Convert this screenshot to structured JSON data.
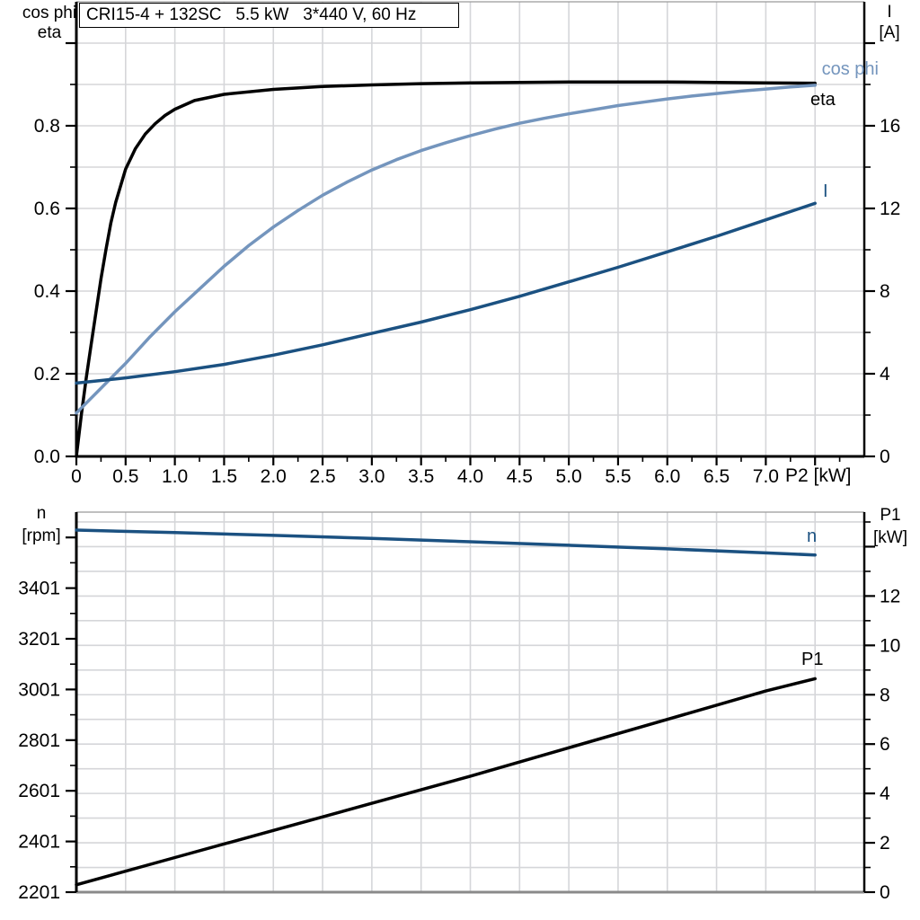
{
  "colors": {
    "eta": "#000000",
    "cos_phi": "#7495bd",
    "current": "#1b5181",
    "speed": "#1b5181",
    "p1": "#000000",
    "grid": "#d5d6d9",
    "axis_black": "#000000",
    "frame_gray": "#9a9a9a",
    "bottom_axis_gray": "#8a8a8a"
  },
  "chart_data": [
    {
      "type": "line",
      "title": "CRI15-4 + 132SC   5.5 kW   3*440 V, 60 Hz",
      "x_axis": {
        "label": "P2 [kW]",
        "range": [
          0,
          8
        ],
        "grid_step": 0.5,
        "major_step": 0.5,
        "minor_step": 0.25,
        "tick_labels": [
          "0",
          "0.5",
          "1.0",
          "1.5",
          "2.0",
          "2.5",
          "3.0",
          "3.5",
          "4.0",
          "4.5",
          "5.0",
          "5.5",
          "6.0",
          "6.5",
          "7.0"
        ]
      },
      "left_axis": {
        "title_lines": [
          "cos phi",
          "eta"
        ],
        "range": [
          0,
          1.1
        ],
        "major_ticks": [
          0,
          0.2,
          0.4,
          0.6,
          0.8,
          1.0
        ],
        "tick_labels": [
          "0.0",
          "0.2",
          "0.4",
          "0.6",
          "0.8"
        ],
        "minor_step": 0.1
      },
      "right_axis": {
        "title_lines": [
          "I",
          "[A]"
        ],
        "range": [
          0,
          22
        ],
        "major_ticks": [
          0,
          4,
          8,
          12,
          16,
          20
        ],
        "tick_labels": [
          "0",
          "4",
          "8",
          "12",
          "16"
        ],
        "minor_step": 2
      },
      "grid_axis": "left",
      "legend_position": "curve-end-labels",
      "series": [
        {
          "name": "eta",
          "axis": "left",
          "color": "#000000",
          "x": [
            0,
            0.05,
            0.1,
            0.15,
            0.2,
            0.25,
            0.3,
            0.35,
            0.4,
            0.5,
            0.6,
            0.7,
            0.8,
            0.9,
            1.0,
            1.2,
            1.5,
            2.0,
            2.5,
            3.0,
            3.5,
            4.0,
            4.5,
            5.0,
            5.5,
            6.0,
            6.5,
            7.0,
            7.5
          ],
          "y": [
            0,
            0.1,
            0.19,
            0.27,
            0.35,
            0.43,
            0.5,
            0.565,
            0.615,
            0.695,
            0.745,
            0.78,
            0.805,
            0.825,
            0.84,
            0.861,
            0.876,
            0.888,
            0.895,
            0.899,
            0.902,
            0.904,
            0.905,
            0.906,
            0.906,
            0.906,
            0.905,
            0.904,
            0.903
          ]
        },
        {
          "name": "cos phi",
          "axis": "left",
          "color": "#7495bd",
          "x": [
            0,
            0.25,
            0.5,
            0.75,
            1.0,
            1.25,
            1.5,
            1.75,
            2.0,
            2.25,
            2.5,
            2.75,
            3.0,
            3.25,
            3.5,
            3.75,
            4.0,
            4.25,
            4.5,
            4.75,
            5.0,
            5.25,
            5.5,
            5.75,
            6.0,
            6.25,
            6.5,
            6.75,
            7.0,
            7.25,
            7.5
          ],
          "y": [
            0.105,
            0.165,
            0.225,
            0.29,
            0.35,
            0.405,
            0.46,
            0.51,
            0.555,
            0.595,
            0.632,
            0.664,
            0.693,
            0.718,
            0.74,
            0.759,
            0.776,
            0.792,
            0.806,
            0.818,
            0.829,
            0.839,
            0.849,
            0.857,
            0.865,
            0.872,
            0.878,
            0.884,
            0.889,
            0.894,
            0.898
          ]
        },
        {
          "name": "I",
          "axis": "right",
          "color": "#1b5181",
          "x": [
            0,
            0.5,
            1.0,
            1.5,
            2.0,
            2.5,
            3.0,
            3.5,
            4.0,
            4.5,
            5.0,
            5.5,
            6.0,
            6.5,
            7.0,
            7.5
          ],
          "y": [
            3.55,
            3.8,
            4.1,
            4.45,
            4.9,
            5.4,
            5.95,
            6.5,
            7.1,
            7.75,
            8.45,
            9.15,
            9.9,
            10.65,
            11.45,
            12.25
          ]
        }
      ]
    },
    {
      "type": "line",
      "x_axis": {
        "range": [
          0,
          8
        ],
        "grid_step": 0.5,
        "tick_labels": []
      },
      "left_axis": {
        "title_lines": [
          "n",
          "[rpm]"
        ],
        "range": [
          2201,
          3701
        ],
        "major_ticks": [
          2201,
          2401,
          2601,
          2801,
          3001,
          3201,
          3401,
          3601
        ],
        "tick_labels": [
          "2201",
          "2401",
          "2601",
          "2801",
          "3001",
          "3201",
          "3401"
        ],
        "minor_step": 100
      },
      "right_axis": {
        "title_lines": [
          "P1",
          "[kW]"
        ],
        "range": [
          0,
          15.4
        ],
        "major_ticks": [
          0,
          2,
          4,
          6,
          8,
          10,
          12,
          14
        ],
        "tick_labels": [
          "0",
          "2",
          "4",
          "6",
          "8",
          "10",
          "12"
        ],
        "minor_step": 1
      },
      "grid_axis": "right",
      "legend_position": "curve-end-labels",
      "series": [
        {
          "name": "n",
          "axis": "left",
          "color": "#1b5181",
          "x": [
            0,
            1,
            2,
            3,
            4,
            5,
            6,
            7,
            7.5
          ],
          "y": [
            3630,
            3620,
            3609,
            3597,
            3584,
            3570,
            3556,
            3540,
            3532
          ]
        },
        {
          "name": "P1",
          "axis": "right",
          "color": "#000000",
          "x": [
            0,
            1,
            2,
            3,
            4,
            5,
            6,
            7,
            7.5
          ],
          "y": [
            0.3,
            1.4,
            2.5,
            3.6,
            4.7,
            5.85,
            7.0,
            8.15,
            8.65
          ]
        }
      ]
    }
  ]
}
